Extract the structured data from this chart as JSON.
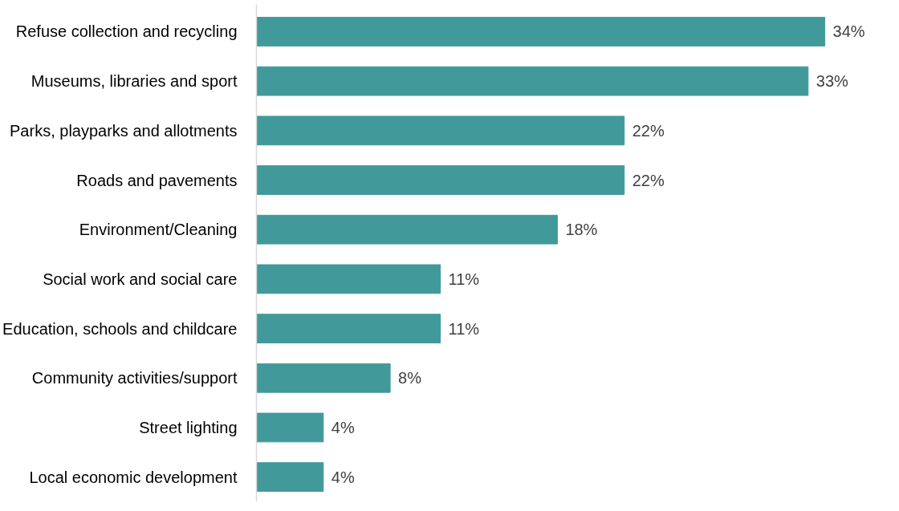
{
  "chart_data": {
    "type": "bar",
    "orientation": "horizontal",
    "tick_labels": "y",
    "grid": false,
    "categories": [
      "Refuse collection and recycling",
      "Museums, libraries and sport",
      "Parks, playparks and allotments",
      "Roads and pavements",
      "Environment/Cleaning",
      "Social work and social care",
      "Education, schools and childcare",
      "Community activities/support",
      "Street lighting",
      "Local economic development"
    ],
    "values": [
      34,
      33,
      22,
      22,
      18,
      11,
      11,
      8,
      4,
      4
    ],
    "value_labels": [
      "34%",
      "33%",
      "22%",
      "22%",
      "18%",
      "11%",
      "11%",
      "8%",
      "4%",
      "4%"
    ],
    "color": "#41999a"
  }
}
